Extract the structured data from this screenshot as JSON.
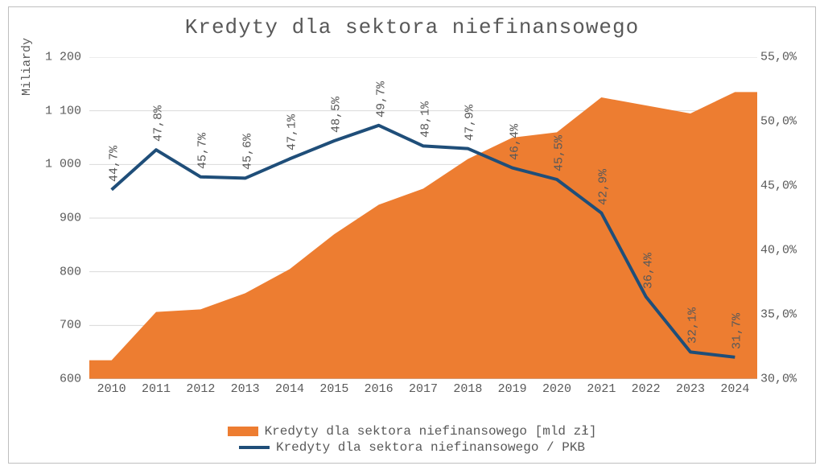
{
  "chart": {
    "type": "combo-area-line",
    "title": "Kredyty dla sektora niefinansowego",
    "y_left_title": "Miliardy",
    "x_categories": [
      "2010",
      "2011",
      "2012",
      "2013",
      "2014",
      "2015",
      "2016",
      "2017",
      "2018",
      "2019",
      "2020",
      "2021",
      "2022",
      "2023",
      "2024"
    ],
    "area": {
      "name": "Kredyty dla sektora niefinansowego [mld zł]",
      "color": "#ed7d31",
      "values": [
        635,
        725,
        730,
        760,
        805,
        870,
        925,
        955,
        1010,
        1050,
        1060,
        1125,
        1110,
        1095,
        1135
      ]
    },
    "line": {
      "name": "Kredyty dla sektora niefinansowego / PKB",
      "color": "#1f4e79",
      "width": 4,
      "values": [
        44.7,
        47.8,
        45.7,
        45.6,
        47.1,
        48.5,
        49.7,
        48.1,
        47.9,
        46.4,
        45.5,
        42.9,
        36.4,
        32.1,
        31.7
      ],
      "value_labels": [
        "44,7%",
        "47,8%",
        "45,7%",
        "45,6%",
        "47,1%",
        "48,5%",
        "49,7%",
        "48,1%",
        "47,9%",
        "46,4%",
        "45,5%",
        "42,9%",
        "36,4%",
        "32,1%",
        "31,7%"
      ]
    },
    "y_left": {
      "min": 600,
      "max": 1200,
      "step": 100,
      "tick_labels": [
        "600",
        "700",
        "800",
        "900",
        "1 000",
        "1 100",
        "1 200"
      ]
    },
    "y_right": {
      "min": 30.0,
      "max": 55.0,
      "step": 5.0,
      "tick_labels": [
        "30,0%",
        "35,0%",
        "40,0%",
        "45,0%",
        "50,0%",
        "55,0%"
      ]
    },
    "grid_color": "#d9d9d9",
    "axis_color": "#bfbfbf",
    "background_color": "#ffffff",
    "label_color": "#595959",
    "title_fontsize": 26,
    "label_fontsize": 15
  }
}
